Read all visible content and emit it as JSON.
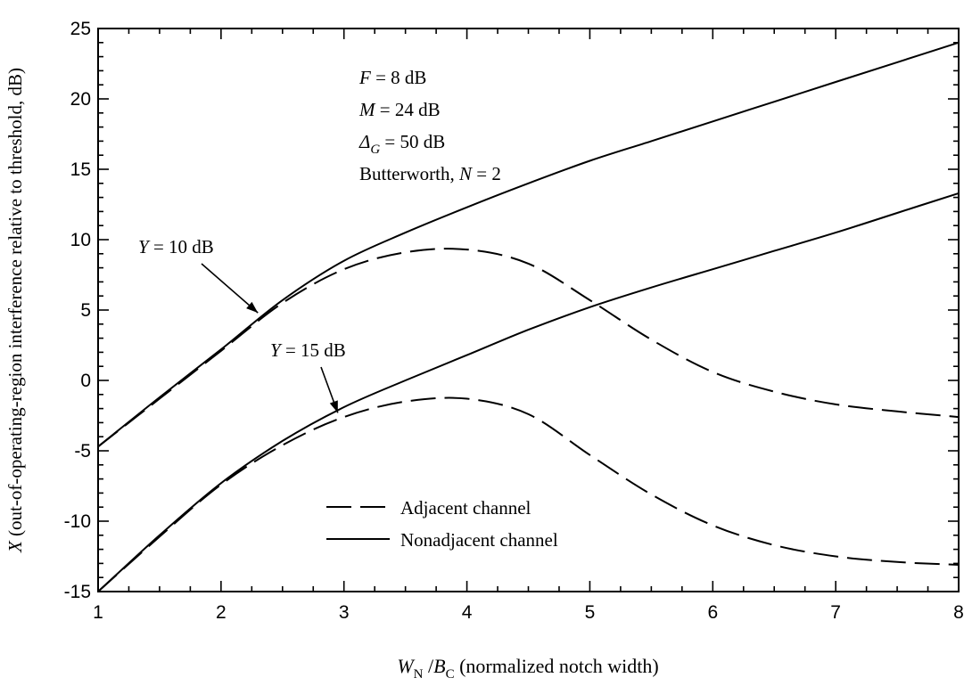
{
  "chart_data": {
    "type": "line",
    "xlabel": {
      "var1": "W",
      "sub1": "N",
      "slash": " /",
      "var2": "B",
      "sub2": "C",
      "rest": " (normalized notch width)"
    },
    "ylabel": {
      "var": "X",
      "rest": " (out-of-operating-region interference relative to threshold, dB)"
    },
    "xlim": [
      1,
      8
    ],
    "ylim": [
      -15,
      25
    ],
    "x_ticks": [
      "1",
      "2",
      "3",
      "4",
      "5",
      "6",
      "7",
      "8"
    ],
    "y_ticks": [
      "-15",
      "-10",
      "-5",
      "0",
      "5",
      "10",
      "15",
      "20",
      "25"
    ],
    "grid": false,
    "parameters": [
      {
        "var": "F",
        "sub": "",
        "rest": " = 8 dB"
      },
      {
        "var": "M",
        "sub": "",
        "rest": " = 24 dB"
      },
      {
        "var": "Δ",
        "sub": "G",
        "rest": " = 50 dB"
      },
      {
        "var": "",
        "sub": "",
        "rest": "Butterworth, ",
        "var2": "N",
        "rest2": " = 2"
      }
    ],
    "annotations": [
      {
        "var": "Y",
        "rest": " = 10 dB",
        "points_to": [
          2.3,
          4.8
        ]
      },
      {
        "var": "Y",
        "rest": " = 15 dB",
        "points_to": [
          2.95,
          -2.3
        ]
      }
    ],
    "legend": {
      "position": "bottom-center",
      "entries": [
        {
          "label": "Adjacent channel",
          "style": "dashed"
        },
        {
          "label": "Nonadjacent channel",
          "style": "solid"
        }
      ]
    },
    "series": [
      {
        "group": "Y = 10 dB",
        "style": "solid",
        "x": [
          1,
          1.5,
          2,
          2.5,
          3,
          3.5,
          4,
          4.5,
          5,
          5.5,
          6,
          6.5,
          7,
          7.5,
          8
        ],
        "y": [
          -4.7,
          -1.2,
          2.2,
          5.7,
          8.5,
          10.5,
          12.3,
          14.0,
          15.6,
          17.0,
          18.4,
          19.8,
          21.2,
          22.6,
          24.0
        ]
      },
      {
        "group": "Y = 10 dB",
        "style": "dashed",
        "x": [
          1,
          1.5,
          2,
          2.5,
          3,
          3.5,
          4,
          4.5,
          5,
          5.5,
          6,
          6.5,
          7,
          7.5,
          8
        ],
        "y": [
          -4.7,
          -1.3,
          2.1,
          5.5,
          7.9,
          9.1,
          9.3,
          8.3,
          5.7,
          2.9,
          0.6,
          -0.8,
          -1.7,
          -2.2,
          -2.6
        ]
      },
      {
        "group": "Y = 15 dB",
        "style": "solid",
        "x": [
          1,
          1.5,
          2,
          2.5,
          3,
          3.5,
          4,
          4.5,
          5,
          5.5,
          6,
          6.5,
          7,
          7.5,
          8
        ],
        "y": [
          -15.0,
          -11.0,
          -7.3,
          -4.3,
          -1.9,
          0.0,
          1.8,
          3.6,
          5.2,
          6.6,
          7.9,
          9.2,
          10.5,
          11.9,
          13.3
        ]
      },
      {
        "group": "Y = 15 dB",
        "style": "dashed",
        "x": [
          1,
          1.5,
          2,
          2.5,
          3,
          3.5,
          4,
          4.5,
          5,
          5.5,
          6,
          6.5,
          7,
          7.5,
          8
        ],
        "y": [
          -15.0,
          -11.1,
          -7.4,
          -4.6,
          -2.6,
          -1.5,
          -1.3,
          -2.4,
          -5.3,
          -8.1,
          -10.3,
          -11.7,
          -12.5,
          -12.9,
          -13.1
        ]
      }
    ]
  }
}
